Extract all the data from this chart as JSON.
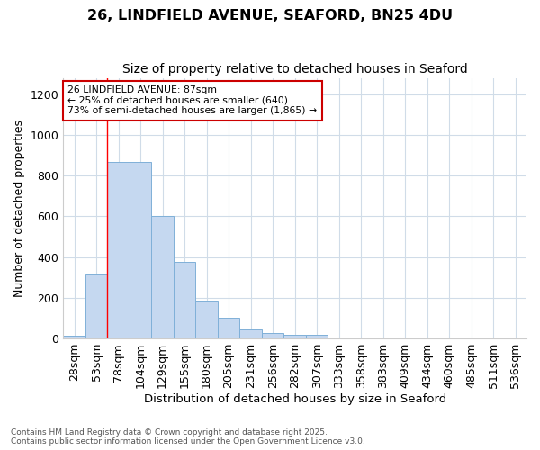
{
  "title1": "26, LINDFIELD AVENUE, SEAFORD, BN25 4DU",
  "title2": "Size of property relative to detached houses in Seaford",
  "xlabel": "Distribution of detached houses by size in Seaford",
  "ylabel": "Number of detached properties",
  "bin_labels": [
    "28sqm",
    "53sqm",
    "78sqm",
    "104sqm",
    "129sqm",
    "155sqm",
    "180sqm",
    "205sqm",
    "231sqm",
    "256sqm",
    "282sqm",
    "307sqm",
    "333sqm",
    "358sqm",
    "383sqm",
    "409sqm",
    "434sqm",
    "460sqm",
    "485sqm",
    "511sqm",
    "536sqm"
  ],
  "bar_values": [
    12,
    320,
    865,
    865,
    600,
    375,
    185,
    100,
    45,
    25,
    18,
    18,
    0,
    0,
    0,
    0,
    0,
    0,
    0,
    0,
    0
  ],
  "bar_color": "#c5d8f0",
  "bar_edge_color": "#7fb0d8",
  "red_line_index": 2,
  "annotation_text": "26 LINDFIELD AVENUE: 87sqm\n← 25% of detached houses are smaller (640)\n73% of semi-detached houses are larger (1,865) →",
  "annotation_box_color": "#ffffff",
  "annotation_box_edge_color": "#cc0000",
  "ylim": [
    0,
    1280
  ],
  "yticks": [
    0,
    200,
    400,
    600,
    800,
    1000,
    1200
  ],
  "footer_text": "Contains HM Land Registry data © Crown copyright and database right 2025.\nContains public sector information licensed under the Open Government Licence v3.0.",
  "background_color": "#ffffff",
  "grid_color": "#d0dce8",
  "title1_fontsize": 12,
  "title2_fontsize": 10
}
